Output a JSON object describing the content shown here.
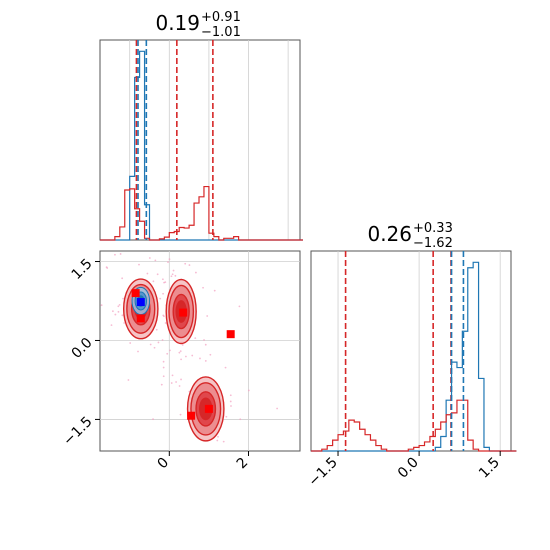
{
  "colors": {
    "primary": "#d62728",
    "secondary": "#1f77b4",
    "secondary_marker": "#0000ff",
    "primary_marker": "#ff0000",
    "grid": "#cfcfcf",
    "axis": "#555555"
  },
  "chart_data": {
    "type": "corner",
    "panels": [
      {
        "kind": "hist1d",
        "variable_index": 0,
        "title_value": "0.19",
        "title_plus": "+0.91",
        "title_minus": "−1.01",
        "xlim": [
          -1.75,
          3.3
        ],
        "bins": {
          "start": -1.75,
          "width": 0.125,
          "red": [
            0,
            0,
            0,
            0.6,
            2.3,
            8.8,
            9.0,
            5.5,
            3.3,
            0.3,
            0,
            0,
            0.2,
            0.5,
            1.3,
            1.5,
            2.2,
            2.1,
            2.6,
            6.5,
            7.6,
            9.4,
            1.2,
            0.6,
            0,
            0.3,
            0.3,
            0.6,
            0,
            0,
            0,
            0,
            0,
            0,
            0,
            0,
            0,
            0,
            0,
            0,
            0
          ],
          "blue": [
            0,
            0,
            0,
            0,
            0,
            0,
            11.2,
            28.6,
            33.2,
            6.2,
            0,
            0,
            0,
            0,
            0,
            0,
            0,
            0,
            0,
            0,
            0,
            0,
            0,
            0,
            0,
            0,
            0,
            0,
            0,
            0,
            0,
            0,
            0,
            0,
            0,
            0,
            0,
            0,
            0,
            0,
            0
          ]
        },
        "vlines": [
          {
            "series": "red",
            "x": -0.83
          },
          {
            "series": "red",
            "x": 0.19
          },
          {
            "series": "red",
            "x": 1.1
          },
          {
            "series": "blue",
            "x": -0.79
          },
          {
            "series": "blue",
            "x": -0.58
          }
        ]
      },
      {
        "kind": "hist1d",
        "variable_index": 1,
        "title_value": "0.26",
        "title_plus": "+0.33",
        "title_minus": "−1.62",
        "xlim": [
          -2.0,
          1.7
        ],
        "xticks": [
          "−1.5",
          "0.0",
          "1.5"
        ],
        "xtick_values": [
          -1.5,
          0.0,
          1.5
        ],
        "bins": {
          "start": -2.0,
          "width": 0.1,
          "red": [
            0,
            0,
            0.1,
            0.3,
            0.6,
            0.9,
            1.1,
            1.7,
            1.6,
            1.2,
            0.9,
            0.6,
            0.3,
            0.1,
            0,
            0,
            0,
            0,
            0.1,
            0.2,
            0.3,
            0.5,
            0.8,
            1.2,
            1.6,
            2.0,
            2.1,
            2.8,
            2.8,
            0.6,
            0.1,
            0,
            0,
            0,
            0,
            0,
            0,
            0
          ],
          "blue": [
            0,
            0,
            0,
            0,
            0,
            0,
            0,
            0,
            0,
            0,
            0,
            0,
            0,
            0,
            0,
            0,
            0,
            0,
            0,
            0,
            0,
            0,
            0,
            0.2,
            0.8,
            2.8,
            4.9,
            4.6,
            6.6,
            10.1,
            10.4,
            4.0,
            0.2,
            0,
            0,
            0,
            0,
            0
          ]
        },
        "vlines": [
          {
            "series": "red",
            "x": -1.36
          },
          {
            "series": "red",
            "x": 0.26
          },
          {
            "series": "red",
            "x": 0.59
          },
          {
            "series": "blue",
            "x": 0.6
          },
          {
            "series": "blue",
            "x": 0.82
          }
        ]
      },
      {
        "kind": "hist2d",
        "xlim": [
          -1.75,
          3.3
        ],
        "ylim": [
          -2.1,
          1.7
        ],
        "xticks": [
          "0",
          "2"
        ],
        "xtick_values": [
          0,
          2
        ],
        "yticks": [
          "−1.5",
          "0.0",
          "1.5"
        ],
        "ytick_values": [
          -1.5,
          0.0,
          1.5
        ],
        "red_modes": [
          {
            "x": -0.72,
            "y": 0.6,
            "sx": 0.32,
            "sy": 0.42
          },
          {
            "x": 0.3,
            "y": 0.55,
            "sx": 0.28,
            "sy": 0.45
          },
          {
            "x": 0.92,
            "y": -1.3,
            "sx": 0.34,
            "sy": 0.45
          }
        ],
        "blue_mode": {
          "x": -0.72,
          "y": 0.75,
          "sx": 0.17,
          "sy": 0.2
        },
        "red_points": [
          {
            "x": -0.85,
            "y": 0.9
          },
          {
            "x": -0.72,
            "y": 0.42
          },
          {
            "x": 0.35,
            "y": 0.53
          },
          {
            "x": 1.55,
            "y": 0.12
          },
          {
            "x": 1.0,
            "y": -1.3
          },
          {
            "x": 0.55,
            "y": -1.43
          }
        ],
        "blue_points": [
          {
            "x": -0.72,
            "y": 0.73
          }
        ]
      }
    ]
  }
}
